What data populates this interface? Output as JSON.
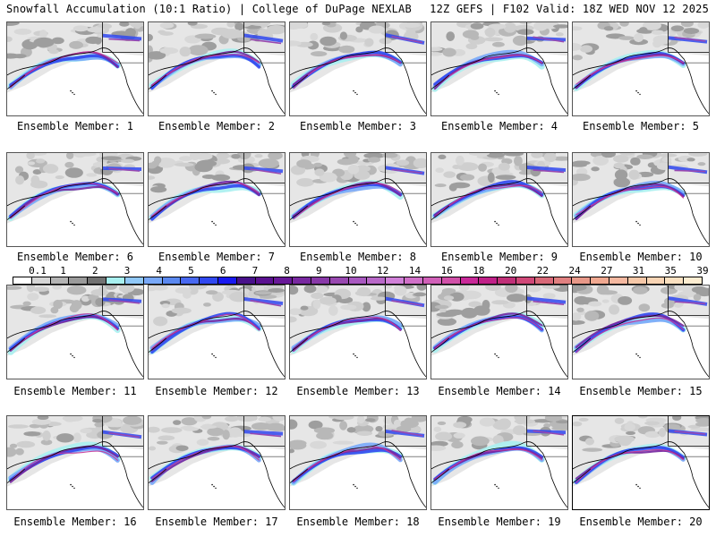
{
  "header": {
    "left": "Snowfall Accumulation (10:1 Ratio) | College of DuPage NEXLAB",
    "right": "12Z GEFS | F102 Valid: 18Z WED NOV 12 2025"
  },
  "colorbar": {
    "ticks": [
      "0.1",
      "1",
      "2",
      "3",
      "4",
      "5",
      "6",
      "7",
      "8",
      "9",
      "10",
      "12",
      "14",
      "16",
      "18",
      "20",
      "22",
      "24",
      "27",
      "31",
      "35",
      "39"
    ],
    "colors": [
      "#ffffff",
      "#d6d6d6",
      "#b4b4b4",
      "#9a9a9a",
      "#727272",
      "#a8f0f0",
      "#90c8f8",
      "#78a8f8",
      "#5a88f0",
      "#4868f0",
      "#3048f0",
      "#1818f0",
      "#48108a",
      "#5a1090",
      "#681898",
      "#7828a0",
      "#8838a8",
      "#9848b0",
      "#a858c0",
      "#b868c8",
      "#d080d8",
      "#d070c8",
      "#d060b8",
      "#d050a8",
      "#c82898",
      "#c02088",
      "#c03078",
      "#d04878",
      "#d86878",
      "#e08080",
      "#e89888",
      "#f0a890",
      "#f4b8a0",
      "#f6c8a8",
      "#f8d4b4",
      "#fae0c0",
      "#fcecd0"
    ]
  },
  "panels": [
    {
      "label": "Ensemble Member: 1"
    },
    {
      "label": "Ensemble Member: 2"
    },
    {
      "label": "Ensemble Member: 3"
    },
    {
      "label": "Ensemble Member: 4"
    },
    {
      "label": "Ensemble Member: 5"
    },
    {
      "label": "Ensemble Member: 6"
    },
    {
      "label": "Ensemble Member: 7"
    },
    {
      "label": "Ensemble Member: 8"
    },
    {
      "label": "Ensemble Member: 9"
    },
    {
      "label": "Ensemble Member: 10"
    },
    {
      "label": "Ensemble Member: 11"
    },
    {
      "label": "Ensemble Member: 12"
    },
    {
      "label": "Ensemble Member: 13"
    },
    {
      "label": "Ensemble Member: 14"
    },
    {
      "label": "Ensemble Member: 15"
    },
    {
      "label": "Ensemble Member: 16"
    },
    {
      "label": "Ensemble Member: 17"
    },
    {
      "label": "Ensemble Member: 18"
    },
    {
      "label": "Ensemble Member: 19"
    },
    {
      "label": "Ensemble Member: 20"
    }
  ]
}
